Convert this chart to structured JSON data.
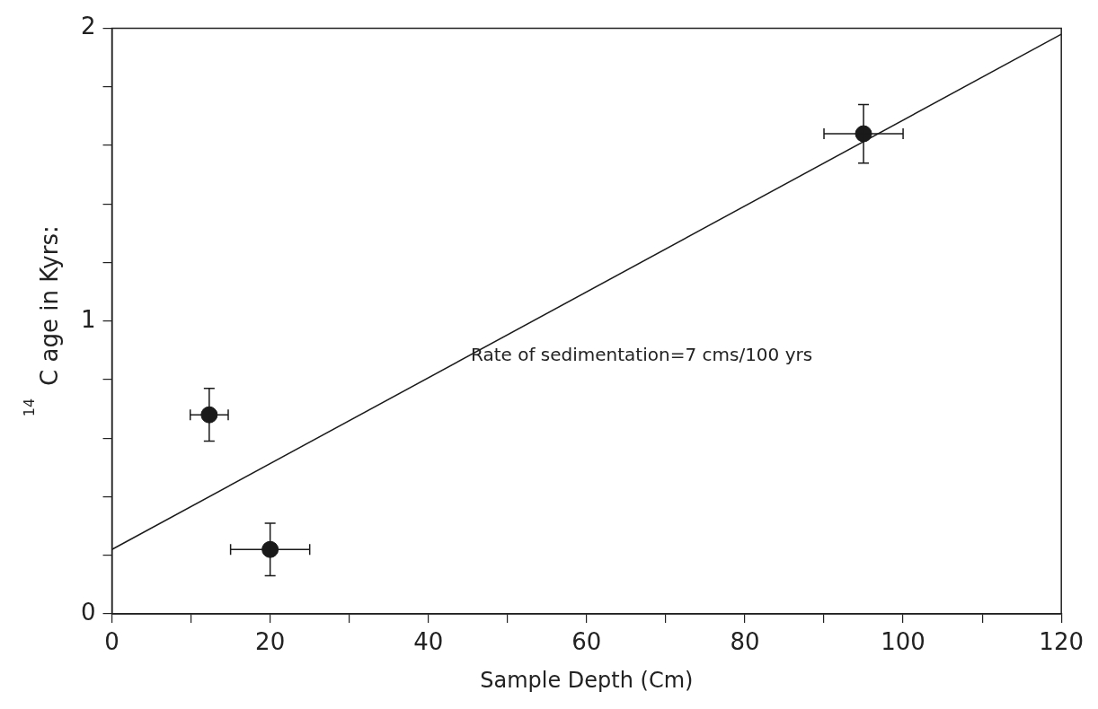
{
  "chart_data": {
    "type": "scatter",
    "xlabel": "Sample Depth (Cm)",
    "ylabel": "$^{14}$C age in Kyrs:",
    "xlim": [
      0,
      120
    ],
    "ylim": [
      0,
      2
    ],
    "xticks": [
      0,
      {
        "value": 10,
        "label": null
      },
      20,
      {
        "value": 30,
        "label": null
      },
      40,
      {
        "value": 50,
        "label": null
      },
      60,
      {
        "value": 70,
        "label": null
      },
      80,
      {
        "value": 90,
        "label": null
      },
      100,
      {
        "value": 110,
        "label": null
      },
      120
    ],
    "yticks": [
      0,
      {
        "value": 0.2,
        "label": null
      },
      {
        "value": 0.4,
        "label": null
      },
      {
        "value": 0.6,
        "label": null
      },
      {
        "value": 0.8,
        "label": null
      },
      1,
      {
        "value": 1.2,
        "label": null
      },
      {
        "value": 1.4,
        "label": null
      },
      {
        "value": 1.6,
        "label": null
      },
      {
        "value": 1.8,
        "label": null
      },
      2
    ],
    "grid": false,
    "legend": false,
    "annotations": [
      "Rate of sedimentation=7 cms/100 yrs"
    ],
    "series": [
      {
        "marker": "circle",
        "color": "#1a1a1a",
        "x": [
          12.3,
          20,
          95
        ],
        "values": [
          0.68,
          0.22,
          1.64
        ],
        "errors": [
          0.09,
          0.09,
          0.1
        ],
        "xerrors": [
          2.4,
          5,
          5
        ]
      },
      {
        "type": "line",
        "color": "#1a1a1a",
        "x": [
          0,
          120
        ],
        "values": [
          0.22,
          1.98
        ]
      }
    ]
  }
}
